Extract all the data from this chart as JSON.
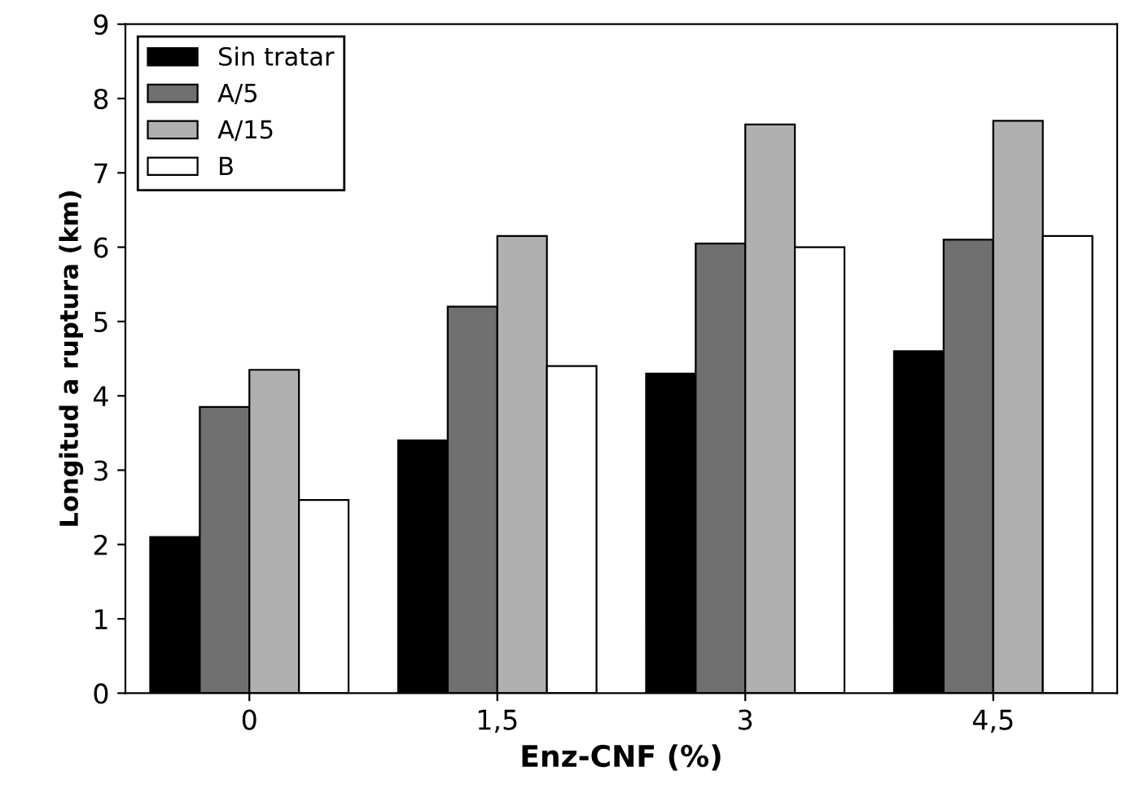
{
  "chart_data": {
    "type": "bar",
    "xlabel": "Enz-CNF (%)",
    "ylabel": "Longitud a ruptura (km)",
    "categories": [
      "0",
      "1,5",
      "3",
      "4,5"
    ],
    "series": [
      {
        "name": "Sin tratar",
        "color": "#000000",
        "values": [
          2.1,
          3.4,
          4.3,
          4.6
        ]
      },
      {
        "name": "A/5",
        "color": "#707070",
        "values": [
          3.85,
          5.2,
          6.05,
          6.1
        ]
      },
      {
        "name": "A/15",
        "color": "#b0b0b0",
        "values": [
          4.35,
          6.15,
          7.65,
          7.7
        ]
      },
      {
        "name": "B",
        "color": "#ffffff",
        "values": [
          2.6,
          4.4,
          6.0,
          6.15
        ]
      }
    ],
    "ylim": [
      0,
      9
    ],
    "yticks": [
      0,
      1,
      2,
      3,
      4,
      5,
      6,
      7,
      8,
      9
    ],
    "grid": false,
    "legend": "top left"
  }
}
